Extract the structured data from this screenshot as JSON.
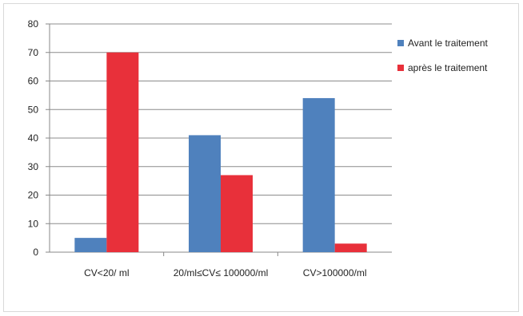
{
  "chart_data": {
    "type": "bar",
    "categories": [
      "CV<20/ ml",
      "20/ml≤CV≤ 100000/ml",
      "CV>100000/ml"
    ],
    "series": [
      {
        "name": "Avant le traitement",
        "color": "#4f81bd",
        "values": [
          5,
          41,
          54
        ]
      },
      {
        "name": "après le traitement",
        "color": "#e8303a",
        "values": [
          70,
          27,
          3
        ]
      }
    ],
    "ylim": [
      0,
      80
    ],
    "yticks": [
      "0",
      "10",
      "20",
      "30",
      "40",
      "50",
      "60",
      "70",
      "80"
    ],
    "grid": true,
    "legend": "right"
  }
}
